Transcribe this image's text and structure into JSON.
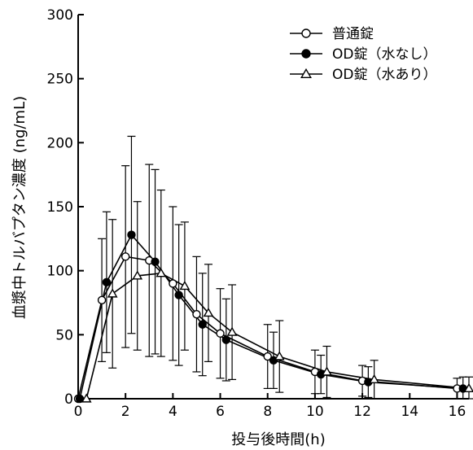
{
  "chart_data": {
    "type": "line",
    "title": "",
    "xlabel": "投与後時間(h)",
    "ylabel": "血漿中トルバプタン濃度 (ng/mL)",
    "xlim": [
      0,
      16.5
    ],
    "ylim": [
      0,
      300
    ],
    "xticks": [
      0,
      2,
      4,
      6,
      8,
      10,
      12,
      14,
      16
    ],
    "yticks": [
      0,
      50,
      100,
      150,
      200,
      250,
      300
    ],
    "grid": false,
    "legend_position": "top-right",
    "series": [
      {
        "name": "普通錠",
        "marker": "open-circle",
        "x": [
          0,
          1,
          2,
          3,
          4,
          5,
          6,
          8,
          10,
          12,
          16
        ],
        "y": [
          0,
          77,
          111,
          108,
          90,
          66,
          51,
          33,
          21,
          14,
          8
        ],
        "sd": [
          0,
          48,
          71,
          75,
          60,
          45,
          35,
          25,
          17,
          12,
          8
        ]
      },
      {
        "name": "OD錠（水なし）",
        "marker": "filled-circle",
        "x": [
          0.07,
          1.2,
          2.25,
          3.25,
          4.25,
          5.25,
          6.25,
          8.25,
          10.25,
          12.25,
          16.25
        ],
        "y": [
          0,
          91,
          128,
          107,
          81,
          58,
          46,
          30,
          19,
          13,
          8
        ],
        "sd": [
          0,
          55,
          77,
          72,
          55,
          40,
          32,
          22,
          15,
          12,
          9
        ]
      },
      {
        "name": "OD錠（水あり）",
        "marker": "open-triangle",
        "x": [
          0.35,
          1.45,
          2.5,
          3.5,
          4.5,
          5.5,
          6.5,
          8.5,
          10.5,
          12.5,
          16.5
        ],
        "y": [
          0,
          82,
          96,
          98,
          88,
          67,
          52,
          33,
          21,
          15,
          8
        ],
        "sd": [
          0,
          58,
          58,
          65,
          50,
          38,
          37,
          28,
          20,
          15,
          9
        ]
      }
    ]
  }
}
